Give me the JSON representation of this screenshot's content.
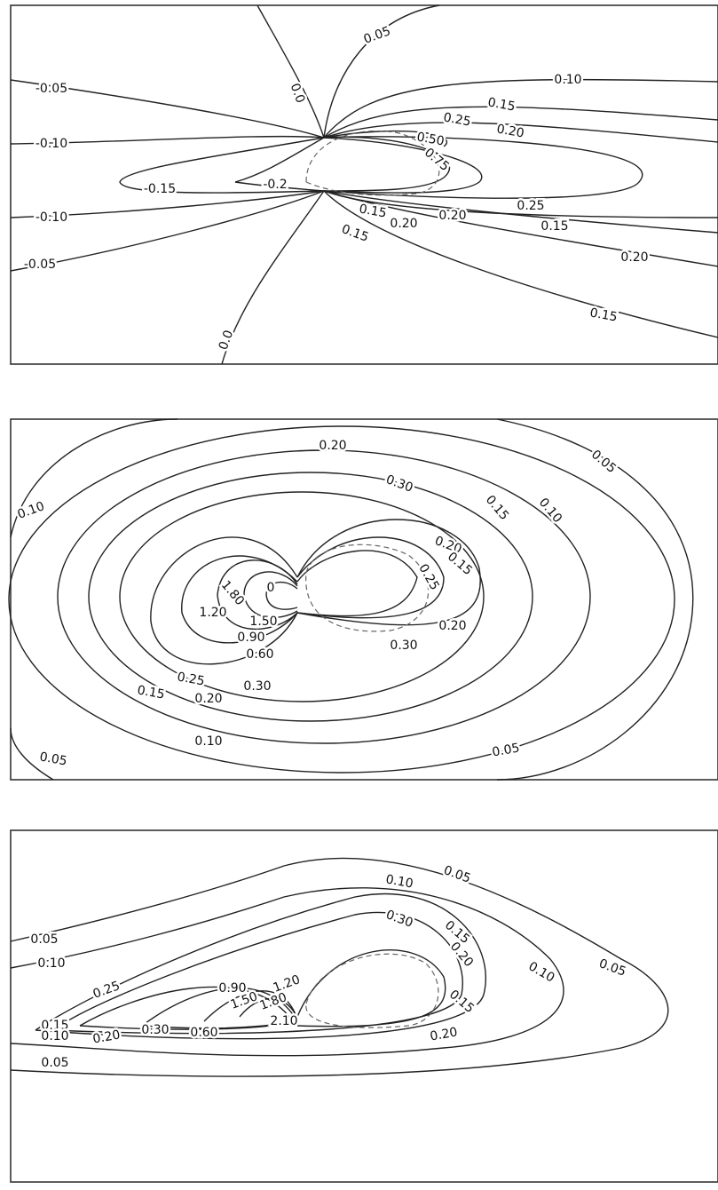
{
  "panels": [
    {
      "labels": [
        "0.05",
        "0.0",
        "-0.05",
        "0.10",
        "0.15",
        "0.25",
        "0.20",
        "-0.10",
        "0.50",
        "0.75",
        "-0.15",
        "-0.2",
        "0.25",
        "-0.10",
        "0.15",
        "0.20",
        "0.20",
        "0.15",
        "0.15",
        "0.20",
        "-0.05",
        "0.15",
        "0.0"
      ]
    },
    {
      "labels": [
        "0.20",
        "0.05",
        "0.30",
        "0.10",
        "0.15",
        "0.10",
        "0.20",
        "0.15",
        "0.25",
        "0",
        "1.80",
        "1.20",
        "1.50",
        "0.90",
        "0.60",
        "0.20",
        "0.30",
        "0.25",
        "0.30",
        "0.15",
        "0.20",
        "0.10",
        "0.05",
        "0.05"
      ]
    },
    {
      "labels": [
        "0.05",
        "0.10",
        "0.30",
        "0.15",
        "0.05",
        "0.20",
        "0.10",
        "0.05",
        "0.10",
        "1.20",
        "0.90",
        "0.25",
        "1.50",
        "1.80",
        "0.15",
        "2.10",
        "0.15",
        "0.10",
        "0.20",
        "0.30",
        "0.60",
        "0.20",
        "0.05"
      ]
    }
  ]
}
